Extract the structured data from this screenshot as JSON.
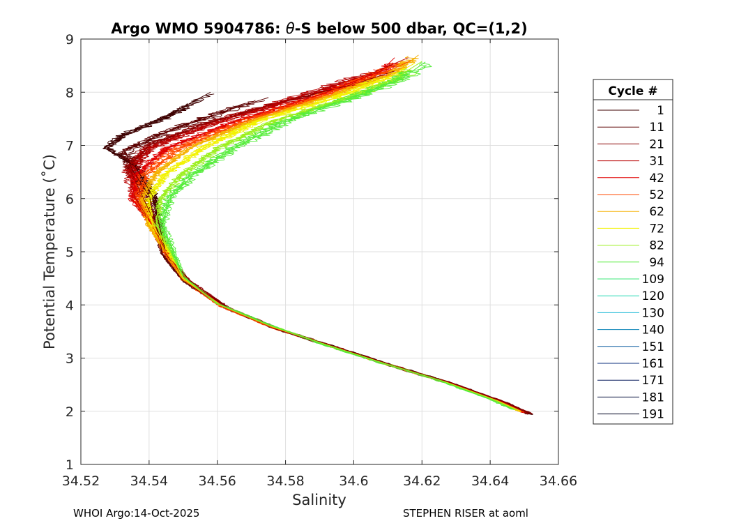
{
  "chart_data": {
    "type": "line",
    "title": "Argo WMO 5904786: θ-S below 500 dbar,  QC=(1,2)",
    "title_parts": {
      "prefix": "Argo WMO 5904786: ",
      "theta": "θ",
      "suffix": "-S below 500 dbar,  QC=(1,2)"
    },
    "xlabel": "Salinity",
    "ylabel": "Potential Temperature (˚C)",
    "xlim": [
      34.52,
      34.66
    ],
    "ylim": [
      1,
      9
    ],
    "xticks": [
      34.52,
      34.54,
      34.56,
      34.58,
      34.6,
      34.62,
      34.64,
      34.66
    ],
    "xtick_labels": [
      "34.52",
      "34.54",
      "34.56",
      "34.58",
      "34.6",
      "34.62",
      "34.64",
      "34.66"
    ],
    "yticks": [
      1,
      2,
      3,
      4,
      5,
      6,
      7,
      8,
      9
    ],
    "ytick_labels": [
      "1",
      "2",
      "3",
      "4",
      "5",
      "6",
      "7",
      "8",
      "9"
    ],
    "grid": true,
    "legend_position": "outside-right",
    "legend_title": "Cycle #",
    "series": [
      {
        "name": "1",
        "color": "#3d0000",
        "values": [
          [
            34.652,
            1.94
          ],
          [
            34.645,
            2.15
          ],
          [
            34.63,
            2.5
          ],
          [
            34.612,
            2.85
          ],
          [
            34.595,
            3.2
          ],
          [
            34.578,
            3.55
          ],
          [
            34.563,
            3.95
          ],
          [
            34.551,
            4.45
          ],
          [
            34.545,
            4.95
          ],
          [
            34.543,
            5.5
          ],
          [
            34.541,
            6.05
          ],
          [
            34.536,
            6.6
          ],
          [
            34.527,
            6.95
          ],
          [
            34.532,
            7.2
          ],
          [
            34.545,
            7.55
          ],
          [
            34.558,
            8.0
          ]
        ]
      },
      {
        "name": "11",
        "color": "#5c0000",
        "values": [
          [
            34.651,
            1.95
          ],
          [
            34.644,
            2.15
          ],
          [
            34.629,
            2.5
          ],
          [
            34.611,
            2.85
          ],
          [
            34.594,
            3.2
          ],
          [
            34.577,
            3.55
          ],
          [
            34.562,
            3.95
          ],
          [
            34.55,
            4.45
          ],
          [
            34.544,
            4.95
          ],
          [
            34.542,
            5.5
          ],
          [
            34.54,
            6.05
          ],
          [
            34.535,
            6.55
          ],
          [
            34.533,
            6.9
          ],
          [
            34.545,
            7.25
          ],
          [
            34.56,
            7.6
          ],
          [
            34.575,
            7.9
          ]
        ]
      },
      {
        "name": "21",
        "color": "#8a0000",
        "values": [
          [
            34.652,
            1.95
          ],
          [
            34.645,
            2.15
          ],
          [
            34.63,
            2.5
          ],
          [
            34.612,
            2.85
          ],
          [
            34.595,
            3.2
          ],
          [
            34.578,
            3.55
          ],
          [
            34.563,
            3.95
          ],
          [
            34.552,
            4.45
          ],
          [
            34.545,
            4.95
          ],
          [
            34.542,
            5.5
          ],
          [
            34.538,
            6.05
          ],
          [
            34.534,
            6.6
          ],
          [
            34.54,
            7.0
          ],
          [
            34.556,
            7.4
          ],
          [
            34.578,
            7.8
          ],
          [
            34.6,
            8.15
          ],
          [
            34.612,
            8.4
          ]
        ]
      },
      {
        "name": "31",
        "color": "#b80000",
        "values": [
          [
            34.651,
            1.96
          ],
          [
            34.644,
            2.16
          ],
          [
            34.629,
            2.51
          ],
          [
            34.611,
            2.86
          ],
          [
            34.594,
            3.21
          ],
          [
            34.577,
            3.56
          ],
          [
            34.562,
            3.96
          ],
          [
            34.551,
            4.46
          ],
          [
            34.545,
            4.96
          ],
          [
            34.541,
            5.5
          ],
          [
            34.536,
            6.0
          ],
          [
            34.534,
            6.5
          ],
          [
            34.54,
            6.95
          ],
          [
            34.558,
            7.4
          ],
          [
            34.583,
            7.9
          ],
          [
            34.605,
            8.35
          ],
          [
            34.616,
            8.65
          ]
        ]
      },
      {
        "name": "42",
        "color": "#e00000",
        "values": [
          [
            34.65,
            1.97
          ],
          [
            34.643,
            2.17
          ],
          [
            34.628,
            2.52
          ],
          [
            34.61,
            2.87
          ],
          [
            34.593,
            3.22
          ],
          [
            34.577,
            3.57
          ],
          [
            34.562,
            3.97
          ],
          [
            34.551,
            4.47
          ],
          [
            34.545,
            4.97
          ],
          [
            34.541,
            5.5
          ],
          [
            34.535,
            6.0
          ],
          [
            34.536,
            6.45
          ],
          [
            34.545,
            6.95
          ],
          [
            34.565,
            7.45
          ],
          [
            34.59,
            7.95
          ],
          [
            34.608,
            8.4
          ],
          [
            34.612,
            8.65
          ]
        ]
      },
      {
        "name": "52",
        "color": "#ff4a00",
        "values": [
          [
            34.65,
            1.98
          ],
          [
            34.643,
            2.18
          ],
          [
            34.628,
            2.53
          ],
          [
            34.61,
            2.88
          ],
          [
            34.593,
            3.23
          ],
          [
            34.576,
            3.58
          ],
          [
            34.561,
            3.98
          ],
          [
            34.55,
            4.48
          ],
          [
            34.545,
            4.98
          ],
          [
            34.541,
            5.5
          ],
          [
            34.537,
            6.0
          ],
          [
            34.539,
            6.45
          ],
          [
            34.549,
            6.95
          ],
          [
            34.568,
            7.45
          ],
          [
            34.592,
            7.95
          ],
          [
            34.61,
            8.4
          ],
          [
            34.617,
            8.6
          ]
        ]
      },
      {
        "name": "62",
        "color": "#f5b000",
        "values": [
          [
            34.649,
            1.99
          ],
          [
            34.642,
            2.19
          ],
          [
            34.627,
            2.54
          ],
          [
            34.609,
            2.89
          ],
          [
            34.592,
            3.24
          ],
          [
            34.576,
            3.59
          ],
          [
            34.561,
            3.99
          ],
          [
            34.55,
            4.49
          ],
          [
            34.545,
            4.99
          ],
          [
            34.54,
            5.5
          ],
          [
            34.538,
            6.0
          ],
          [
            34.542,
            6.45
          ],
          [
            34.552,
            6.95
          ],
          [
            34.57,
            7.45
          ],
          [
            34.594,
            7.95
          ],
          [
            34.612,
            8.35
          ],
          [
            34.619,
            8.7
          ]
        ]
      },
      {
        "name": "72",
        "color": "#f2f200",
        "values": [
          [
            34.649,
            2.0
          ],
          [
            34.642,
            2.2
          ],
          [
            34.627,
            2.55
          ],
          [
            34.609,
            2.9
          ],
          [
            34.592,
            3.25
          ],
          [
            34.576,
            3.6
          ],
          [
            34.561,
            4.0
          ],
          [
            34.55,
            4.5
          ],
          [
            34.546,
            5.0
          ],
          [
            34.541,
            5.5
          ],
          [
            34.54,
            6.0
          ],
          [
            34.545,
            6.45
          ],
          [
            34.556,
            6.95
          ],
          [
            34.572,
            7.45
          ],
          [
            34.595,
            7.9
          ],
          [
            34.611,
            8.3
          ],
          [
            34.618,
            8.55
          ]
        ]
      },
      {
        "name": "82",
        "color": "#9bef1c",
        "values": [
          [
            34.648,
            2.02
          ],
          [
            34.641,
            2.22
          ],
          [
            34.626,
            2.57
          ],
          [
            34.608,
            2.92
          ],
          [
            34.591,
            3.27
          ],
          [
            34.575,
            3.62
          ],
          [
            34.56,
            4.02
          ],
          [
            34.55,
            4.52
          ],
          [
            34.546,
            5.02
          ],
          [
            34.542,
            5.5
          ],
          [
            34.543,
            6.0
          ],
          [
            34.549,
            6.45
          ],
          [
            34.56,
            6.95
          ],
          [
            34.576,
            7.45
          ],
          [
            34.598,
            7.9
          ],
          [
            34.612,
            8.25
          ],
          [
            34.62,
            8.58
          ]
        ]
      },
      {
        "name": "94",
        "color": "#55ec3a",
        "values": [
          [
            34.647,
            2.03
          ],
          [
            34.64,
            2.23
          ],
          [
            34.625,
            2.58
          ],
          [
            34.607,
            2.93
          ],
          [
            34.59,
            3.28
          ],
          [
            34.575,
            3.63
          ],
          [
            34.56,
            4.03
          ],
          [
            34.55,
            4.53
          ],
          [
            34.547,
            5.03
          ],
          [
            34.544,
            5.5
          ],
          [
            34.546,
            6.0
          ],
          [
            34.553,
            6.45
          ],
          [
            34.565,
            6.95
          ],
          [
            34.58,
            7.45
          ],
          [
            34.6,
            7.9
          ],
          [
            34.614,
            8.25
          ],
          [
            34.621,
            8.57
          ]
        ]
      },
      {
        "name": "109",
        "color": "#3de878",
        "values": []
      },
      {
        "name": "120",
        "color": "#22d8b4",
        "values": []
      },
      {
        "name": "130",
        "color": "#16b8d6",
        "values": []
      },
      {
        "name": "140",
        "color": "#0e86b8",
        "values": []
      },
      {
        "name": "151",
        "color": "#0a5aa0",
        "values": []
      },
      {
        "name": "161",
        "color": "#0b2f7e",
        "values": []
      },
      {
        "name": "171",
        "color": "#0a1e5e",
        "values": []
      },
      {
        "name": "181",
        "color": "#08133f",
        "values": []
      },
      {
        "name": "191",
        "color": "#050a26",
        "values": []
      }
    ]
  },
  "footer": {
    "left": "WHOI Argo:14-Oct-2025",
    "right": "STEPHEN RISER at aoml"
  }
}
